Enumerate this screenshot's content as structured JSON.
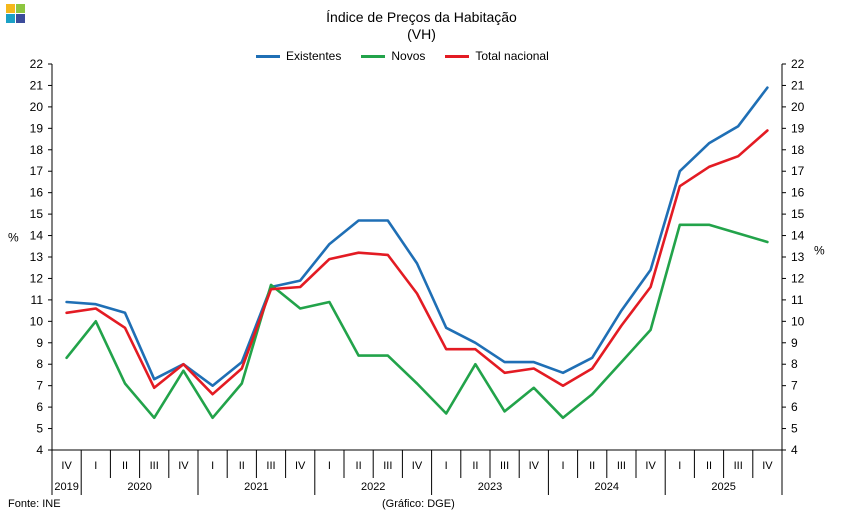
{
  "chart_data": {
    "type": "line",
    "title": "Índice de Preços da Habitação",
    "subtitle": "(VH)",
    "ylabel_left": "%",
    "ylabel_right": "%",
    "ylim": [
      4,
      22
    ],
    "yticks": [
      4,
      5,
      6,
      7,
      8,
      9,
      10,
      11,
      12,
      13,
      14,
      15,
      16,
      17,
      18,
      19,
      20,
      21,
      22
    ],
    "quarters": [
      "IV",
      "I",
      "II",
      "III",
      "IV",
      "I",
      "II",
      "III",
      "IV",
      "I",
      "II",
      "III",
      "IV",
      "I",
      "II",
      "III",
      "IV",
      "I",
      "II",
      "III",
      "IV",
      "I",
      "II",
      "III",
      "IV"
    ],
    "years": [
      "2019",
      "2020",
      "2021",
      "2022",
      "2023",
      "2024",
      "2025"
    ],
    "year_spans": [
      1,
      4,
      4,
      4,
      4,
      4,
      4
    ],
    "series": [
      {
        "name": "Existentes",
        "color": "#1f6fb5",
        "values": [
          10.9,
          10.8,
          10.4,
          7.3,
          8.0,
          7.0,
          8.1,
          11.6,
          11.9,
          13.6,
          14.7,
          14.7,
          12.7,
          9.7,
          9.0,
          8.1,
          8.1,
          7.6,
          8.3,
          10.5,
          12.4,
          17.0,
          18.3,
          19.1,
          20.9
        ]
      },
      {
        "name": "Novos",
        "color": "#22a34a",
        "values": [
          8.3,
          10.0,
          7.1,
          5.5,
          7.7,
          5.5,
          7.1,
          11.7,
          10.6,
          10.9,
          8.4,
          8.4,
          7.1,
          5.7,
          8.0,
          5.8,
          6.9,
          5.5,
          6.6,
          8.1,
          9.6,
          14.5,
          14.5,
          14.1,
          13.7
        ]
      },
      {
        "name": "Total nacional",
        "color": "#e31b23",
        "values": [
          10.4,
          10.6,
          9.7,
          6.9,
          8.0,
          6.6,
          7.8,
          11.5,
          11.6,
          12.9,
          13.2,
          13.1,
          11.3,
          8.7,
          8.7,
          7.6,
          7.8,
          7.0,
          7.8,
          9.8,
          11.6,
          16.3,
          17.2,
          17.7,
          18.9
        ]
      }
    ]
  },
  "footer": {
    "source": "Fonte: INE",
    "credit": "(Gráfico: DGE)"
  },
  "logo": {
    "colors": [
      "#f4b81c",
      "#8dc63f",
      "#1ba1c6",
      "#3b4c9b"
    ]
  }
}
